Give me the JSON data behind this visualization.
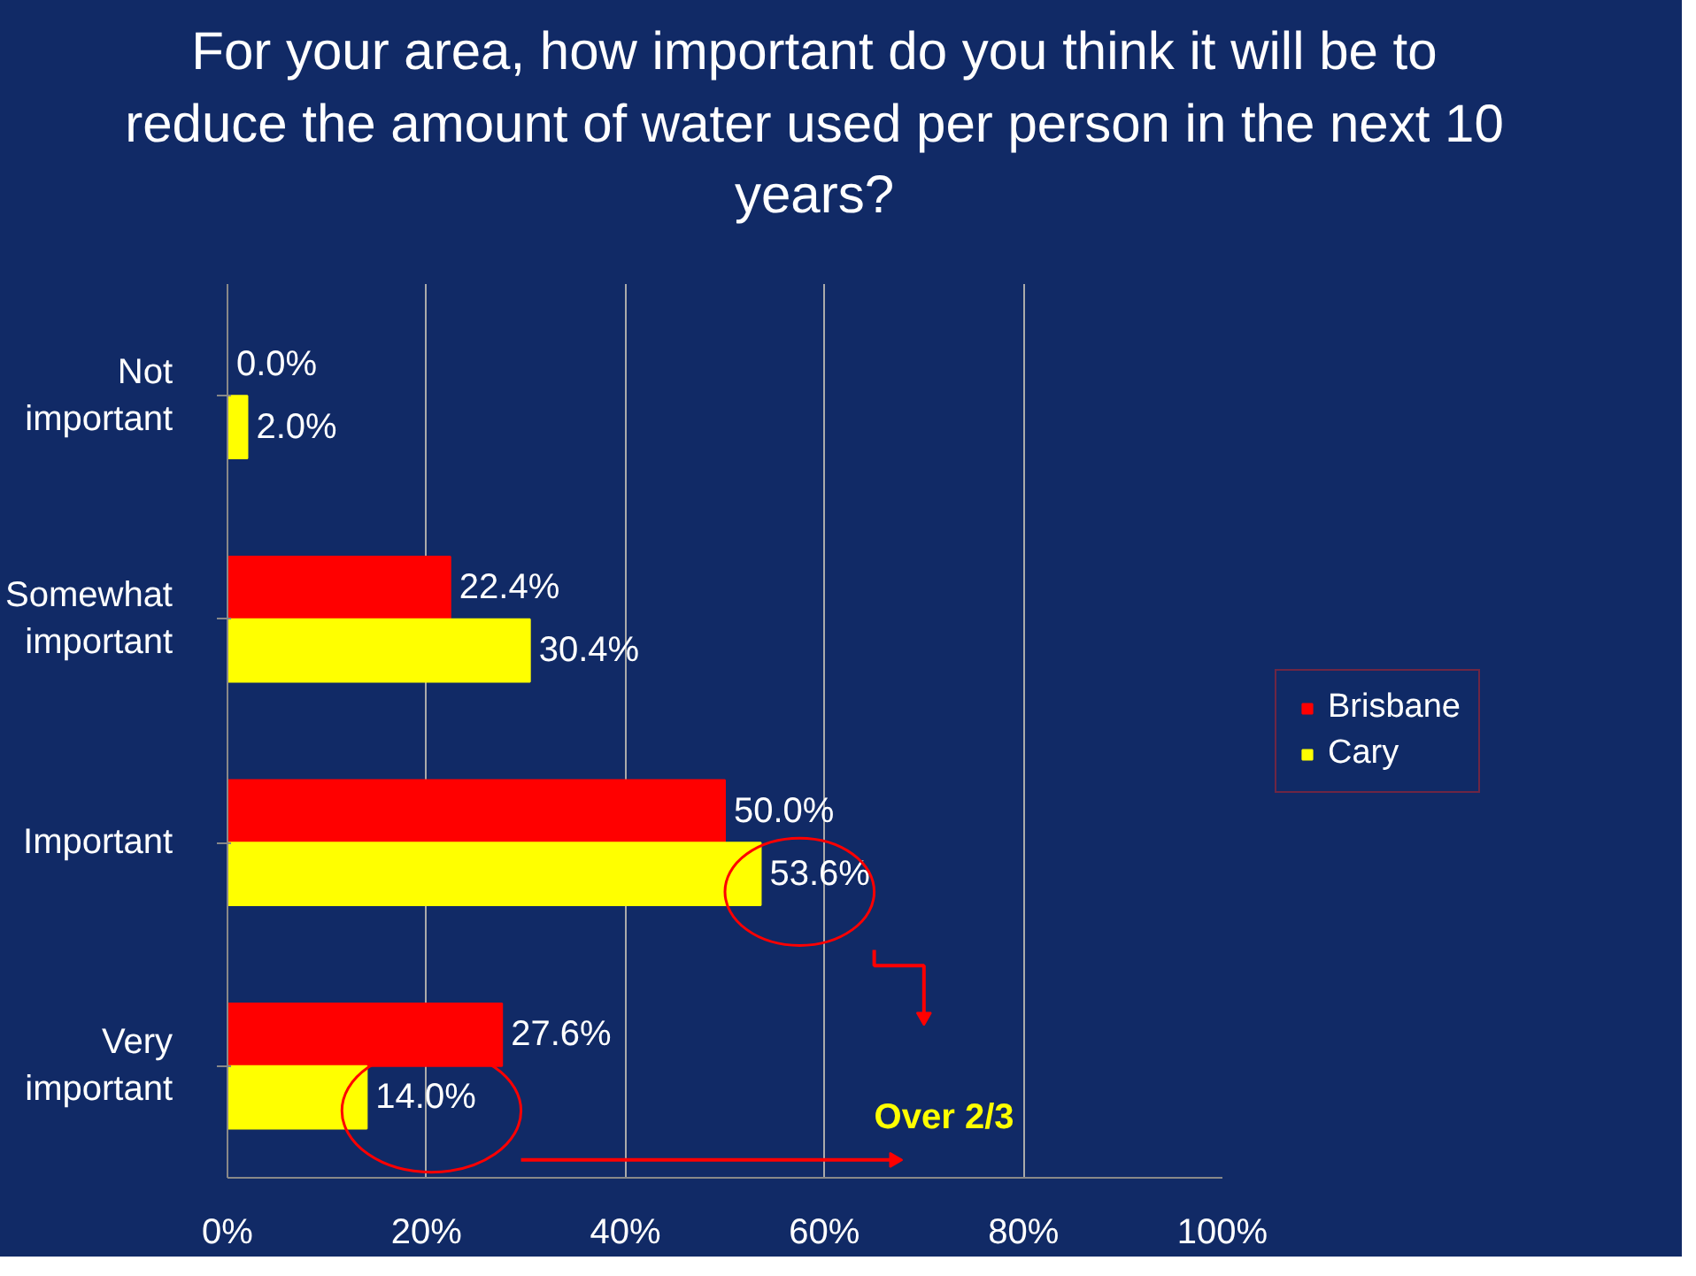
{
  "chart_data": {
    "type": "bar",
    "orientation": "horizontal",
    "title": "For your area, how important do you think it will be to reduce the amount of water used per person in the next 10 years?",
    "categories": [
      "Not\nimportant",
      "Somewhat\nimportant",
      "Important",
      "Very\nimportant"
    ],
    "series": [
      {
        "name": "Brisbane",
        "color": "#ff0000",
        "values": [
          0.0,
          22.4,
          50.0,
          27.6
        ],
        "value_labels": [
          "0.0%",
          "22.4%",
          "50.0%",
          "27.6%"
        ]
      },
      {
        "name": "Cary",
        "color": "#ffff00",
        "values": [
          2.0,
          30.4,
          53.6,
          14.0
        ],
        "value_labels": [
          "2.0%",
          "30.4%",
          "53.6%",
          "14.0%"
        ]
      }
    ],
    "xlim": [
      0,
      100
    ],
    "xticks": [
      {
        "value": 0,
        "label": "0%"
      },
      {
        "value": 20,
        "label": "20%"
      },
      {
        "value": 40,
        "label": "40%"
      },
      {
        "value": 60,
        "label": "60%"
      },
      {
        "value": 80,
        "label": "80%"
      },
      {
        "value": 100,
        "label": "100%"
      }
    ],
    "grid": "x",
    "legend": "right",
    "annotations": [
      "Over 2/3"
    ]
  }
}
